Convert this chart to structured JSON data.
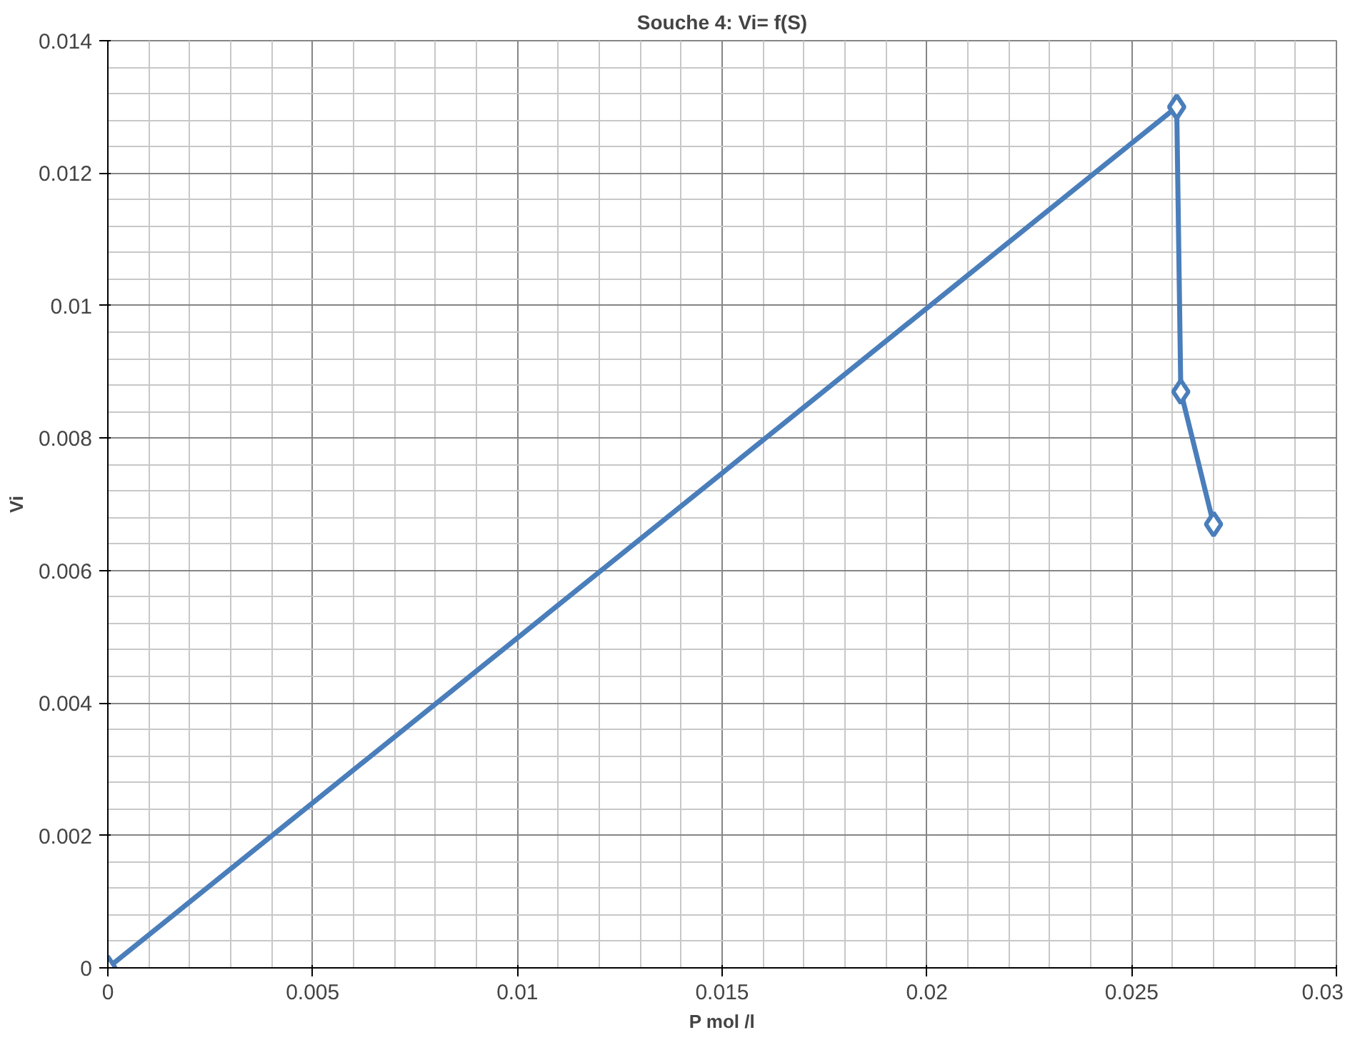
{
  "chart_data": {
    "type": "line",
    "title": "Souche 4: Vi= f(S)",
    "xlabel": "P mol /l",
    "ylabel": "Vi",
    "x": [
      0,
      0.0261,
      0.0262,
      0.027
    ],
    "series": [
      {
        "color": "#4a7ebb",
        "values": [
          0,
          0.013,
          0.0087,
          0.0067
        ]
      }
    ],
    "xlim": [
      0,
      0.03
    ],
    "ylim": [
      0,
      0.014
    ],
    "xticks": [
      0,
      0.005,
      0.01,
      0.015,
      0.02,
      0.025,
      0.03
    ],
    "yticks": [
      0,
      0.002,
      0.004,
      0.006,
      0.008,
      0.01,
      0.012,
      0.014
    ],
    "grid": true,
    "marker": "diamond",
    "line_style": "solid"
  }
}
